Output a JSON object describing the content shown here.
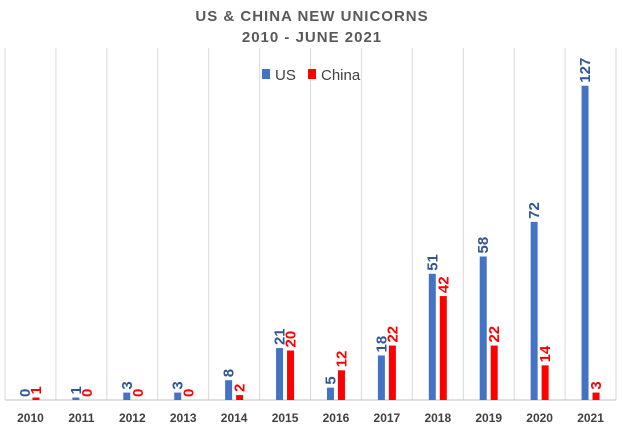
{
  "chart_data": {
    "type": "bar",
    "title": "US & CHINA NEW UNICORNS",
    "subtitle": "2010 - JUNE 2021",
    "categories": [
      "2010",
      "2011",
      "2012",
      "2013",
      "2014",
      "2015",
      "2016",
      "2017",
      "2018",
      "2019",
      "2020",
      "2021"
    ],
    "series": [
      {
        "name": "US",
        "color": "#4472C4",
        "label_color": "#2F5597",
        "values": [
          0,
          1,
          3,
          3,
          8,
          21,
          5,
          18,
          51,
          58,
          72,
          127
        ]
      },
      {
        "name": "China",
        "color": "#FF0000",
        "label_color": "#FF0000",
        "values": [
          1,
          0,
          0,
          0,
          2,
          20,
          12,
          22,
          42,
          22,
          14,
          3
        ]
      }
    ],
    "xlabel": "",
    "ylabel": "",
    "ylim": [
      0,
      137
    ],
    "grid": "vertical",
    "legend": "top-center"
  }
}
